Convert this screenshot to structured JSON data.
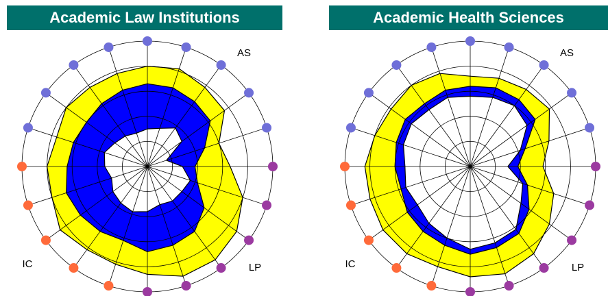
{
  "chart_data": [
    {
      "type": "radar",
      "title": "Academic Law Institutions",
      "annotations": [
        "AS",
        "IC",
        "LP"
      ],
      "ylim": [
        0,
        10
      ],
      "yticks": [
        2,
        4,
        6,
        8,
        10
      ],
      "grid": true,
      "dot_colors": [
        "#6f6fd8",
        "#6f6fd8",
        "#6f6fd8",
        "#6f6fd8",
        "#6f6fd8",
        "#9b3aa0",
        "#9b3aa0",
        "#9b3aa0",
        "#9b3aa0",
        "#9b3aa0",
        "#9b3aa0",
        "#ff6a3a",
        "#ff6a3a",
        "#ff6a3a",
        "#ff6a3a",
        "#ff6a3a",
        "#6f6fd8",
        "#6f6fd8",
        "#6f6fd8",
        "#6f6fd8"
      ],
      "series": [
        {
          "color": "#ffff00",
          "values": [
            8.0,
            8.2,
            7.8,
            7.6,
            6.0,
            6.6,
            8.0,
            8.8,
            9.2,
            9.2,
            8.6,
            8.2,
            8.2,
            8.6,
            8.0,
            8.0,
            7.6,
            8.0,
            7.8,
            7.8
          ]
        },
        {
          "color": "#0000ff",
          "values": [
            6.6,
            6.6,
            6.4,
            6.2,
            4.8,
            3.8,
            4.2,
            5.6,
            6.4,
            6.6,
            6.8,
            6.2,
            6.4,
            6.6,
            6.8,
            6.4,
            6.2,
            6.0,
            6.2,
            6.4
          ]
        },
        {
          "color": "#ffffff",
          "values": [
            3.0,
            3.2,
            3.8,
            3.4,
            1.6,
            2.8,
            3.6,
            3.4,
            3.4,
            3.2,
            3.6,
            3.8,
            3.6,
            3.4,
            3.0,
            3.4,
            3.6,
            3.2,
            3.0,
            2.8
          ]
        }
      ]
    },
    {
      "type": "radar",
      "title": "Academic Health Sciences",
      "annotations": [
        "AS",
        "IC",
        "LP"
      ],
      "ylim": [
        0,
        10
      ],
      "yticks": [
        2,
        4,
        6,
        8,
        10
      ],
      "grid": true,
      "dot_colors": [
        "#6f6fd8",
        "#6f6fd8",
        "#6f6fd8",
        "#6f6fd8",
        "#6f6fd8",
        "#9b3aa0",
        "#9b3aa0",
        "#9b3aa0",
        "#9b3aa0",
        "#9b3aa0",
        "#9b3aa0",
        "#ff6a3a",
        "#ff6a3a",
        "#ff6a3a",
        "#ff6a3a",
        "#ff6a3a",
        "#6f6fd8",
        "#6f6fd8",
        "#6f6fd8",
        "#6f6fd8"
      ],
      "series": [
        {
          "color": "#ffff00",
          "values": [
            7.2,
            7.4,
            7.6,
            7.8,
            6.6,
            5.8,
            7.0,
            7.8,
            8.6,
            9.0,
            8.8,
            8.4,
            8.6,
            8.6,
            8.4,
            8.4,
            8.0,
            7.8,
            8.0,
            7.8
          ]
        },
        {
          "color": "#0000ff",
          "values": [
            6.4,
            6.6,
            6.6,
            6.4,
            4.6,
            3.8,
            4.8,
            5.8,
            6.6,
            6.8,
            7.0,
            6.6,
            6.4,
            6.2,
            5.8,
            6.0,
            6.2,
            6.4,
            6.2,
            6.4
          ]
        },
        {
          "color": "#ffffff",
          "values": [
            5.6,
            5.8,
            6.0,
            5.6,
            4.2,
            3.0,
            4.4,
            5.0,
            6.2,
            6.4,
            6.6,
            6.0,
            5.6,
            5.2,
            5.4,
            5.2,
            5.6,
            5.8,
            5.6,
            5.8
          ]
        }
      ]
    }
  ]
}
